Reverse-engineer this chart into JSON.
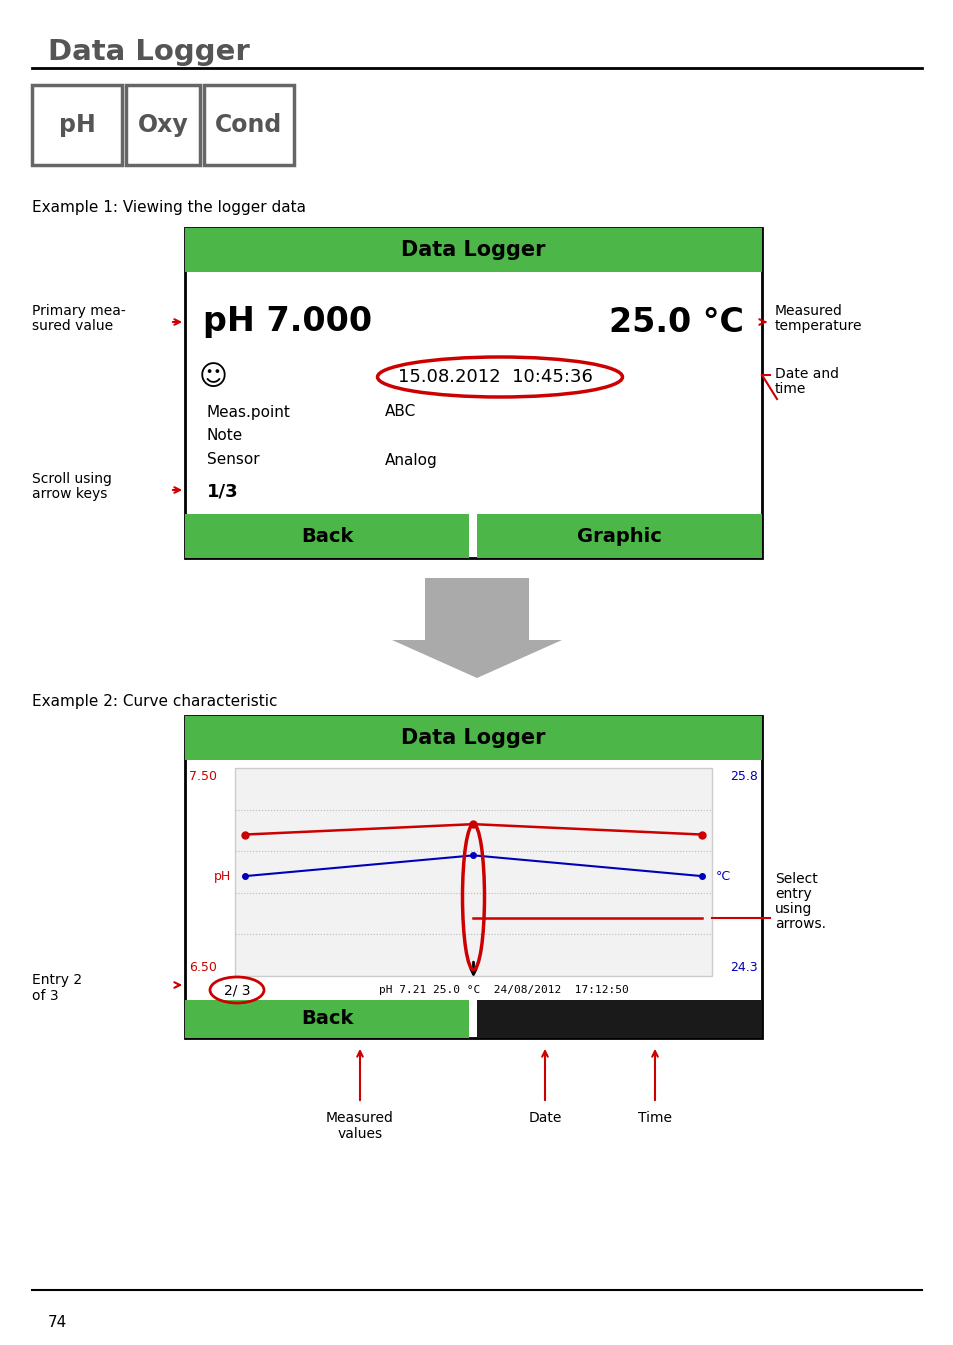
{
  "bg_color": "#ffffff",
  "page_title": "Data Logger",
  "tab_labels": [
    "pH",
    "Oxy",
    "Cond"
  ],
  "example1_label": "Example 1: Viewing the logger data",
  "example2_label": "Example 2: Curve characteristic",
  "green_color": "#4db648",
  "screen1": {
    "title": "Data Logger",
    "ph_value": "pH 7.000",
    "temp_value": "25.0 °C",
    "datetime": "15.08.2012  10:45:36",
    "smiley": "☺",
    "fields": [
      [
        "Meas.point",
        "ABC"
      ],
      [
        "Note",
        ""
      ],
      [
        "Sensor",
        "Analog"
      ]
    ],
    "entry": "1/3",
    "btn1": "Back",
    "btn2": "Graphic"
  },
  "screen2": {
    "title": "Data Logger",
    "y_left_top": "7.50",
    "y_left_bot": "6.50",
    "y_right_top": "25.8",
    "y_right_bot": "24.3",
    "ph_label": "pH",
    "tc_label": "°C",
    "status_line": "pH 7.21 25.0 °C  24/08/2012  17:12:50",
    "entry": "2/ 3",
    "btn1": "Back"
  },
  "page_number": "74"
}
